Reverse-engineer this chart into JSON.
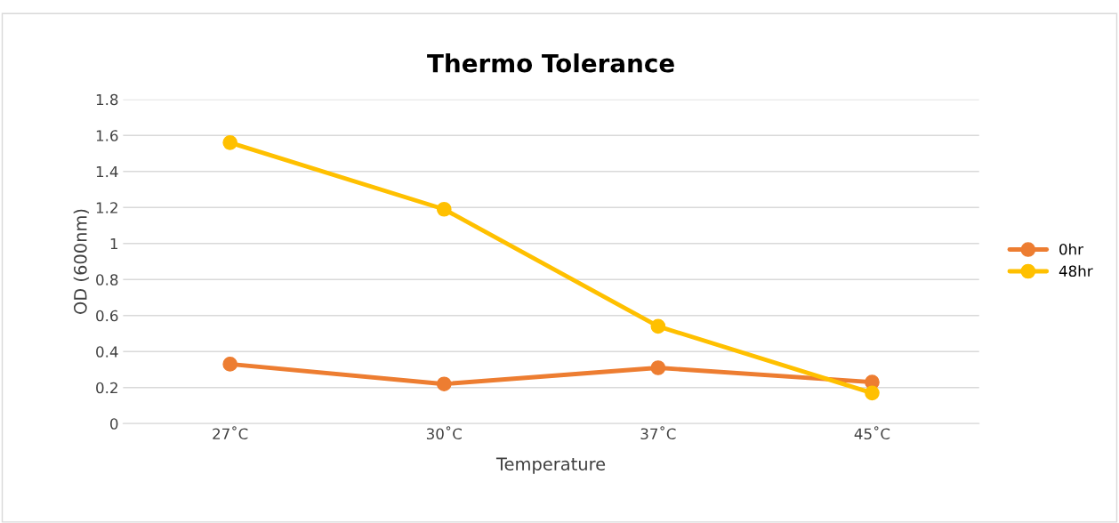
{
  "chart_data": {
    "type": "line",
    "title": "Thermo Tolerance",
    "xlabel": "Temperature",
    "ylabel": "OD (600nm)",
    "categories": [
      "27˚C",
      "30˚C",
      "37˚C",
      "45˚C"
    ],
    "series": [
      {
        "name": "0hr",
        "color": "#ed7d31",
        "values": [
          0.33,
          0.22,
          0.31,
          0.23
        ]
      },
      {
        "name": "48hr",
        "color": "#ffc000",
        "values": [
          1.56,
          1.19,
          0.54,
          0.17
        ]
      }
    ],
    "ylim": [
      0,
      1.8
    ],
    "yticks": [
      0,
      0.2,
      0.4,
      0.6,
      0.8,
      1,
      1.2,
      1.4,
      1.6,
      1.8
    ],
    "grid": "y",
    "legend": "right",
    "marker": "circle",
    "line_style": "solid"
  }
}
